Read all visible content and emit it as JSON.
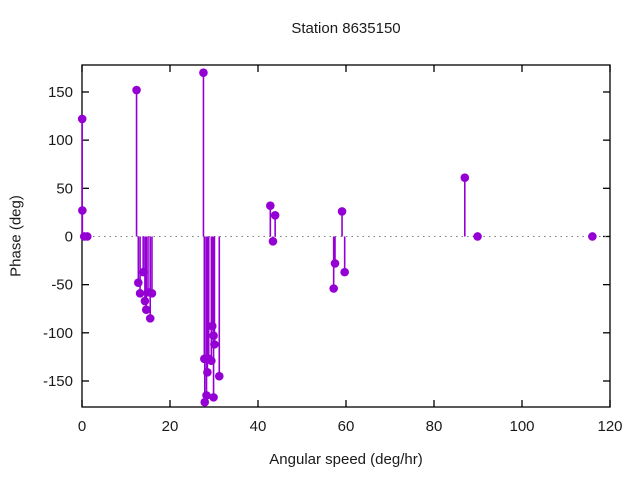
{
  "title": "Station 8635150",
  "chart_data": {
    "type": "stem",
    "title": "Station 8635150",
    "xlabel": "Angular speed (deg/hr)",
    "ylabel": "Phase (deg)",
    "xlim": [
      0,
      120
    ],
    "ylim": [
      -177,
      178
    ],
    "xticks": [
      0,
      20,
      40,
      60,
      80,
      100,
      120
    ],
    "yticks": [
      -150,
      -100,
      -50,
      0,
      50,
      100,
      150
    ],
    "grid": false,
    "legend": false,
    "zero_line": true,
    "zero_line_color": "#7f7f7f",
    "series_color": "#9400d3",
    "frame_color": "#000000",
    "points": [
      [
        0.04,
        122
      ],
      [
        0.08,
        27
      ],
      [
        0.5,
        0
      ],
      [
        1.2,
        0
      ],
      [
        12.4,
        152
      ],
      [
        12.8,
        -48
      ],
      [
        13.2,
        -59
      ],
      [
        13.9,
        -37
      ],
      [
        14.3,
        -67
      ],
      [
        14.6,
        -76
      ],
      [
        15.0,
        -58
      ],
      [
        15.5,
        -85
      ],
      [
        15.9,
        -59
      ],
      [
        27.6,
        170
      ],
      [
        27.8,
        -127
      ],
      [
        27.9,
        -172
      ],
      [
        28.3,
        -165
      ],
      [
        28.5,
        -141
      ],
      [
        28.8,
        -127
      ],
      [
        29.4,
        -129
      ],
      [
        29.6,
        -93
      ],
      [
        29.9,
        -103
      ],
      [
        29.9,
        -167
      ],
      [
        30.1,
        -112
      ],
      [
        31.2,
        -145
      ],
      [
        42.8,
        32
      ],
      [
        43.4,
        -5
      ],
      [
        43.9,
        22
      ],
      [
        57.2,
        -54
      ],
      [
        57.5,
        -28
      ],
      [
        59.1,
        26
      ],
      [
        59.7,
        -37
      ],
      [
        87.0,
        61
      ],
      [
        89.9,
        0
      ],
      [
        116.0,
        0
      ]
    ]
  }
}
